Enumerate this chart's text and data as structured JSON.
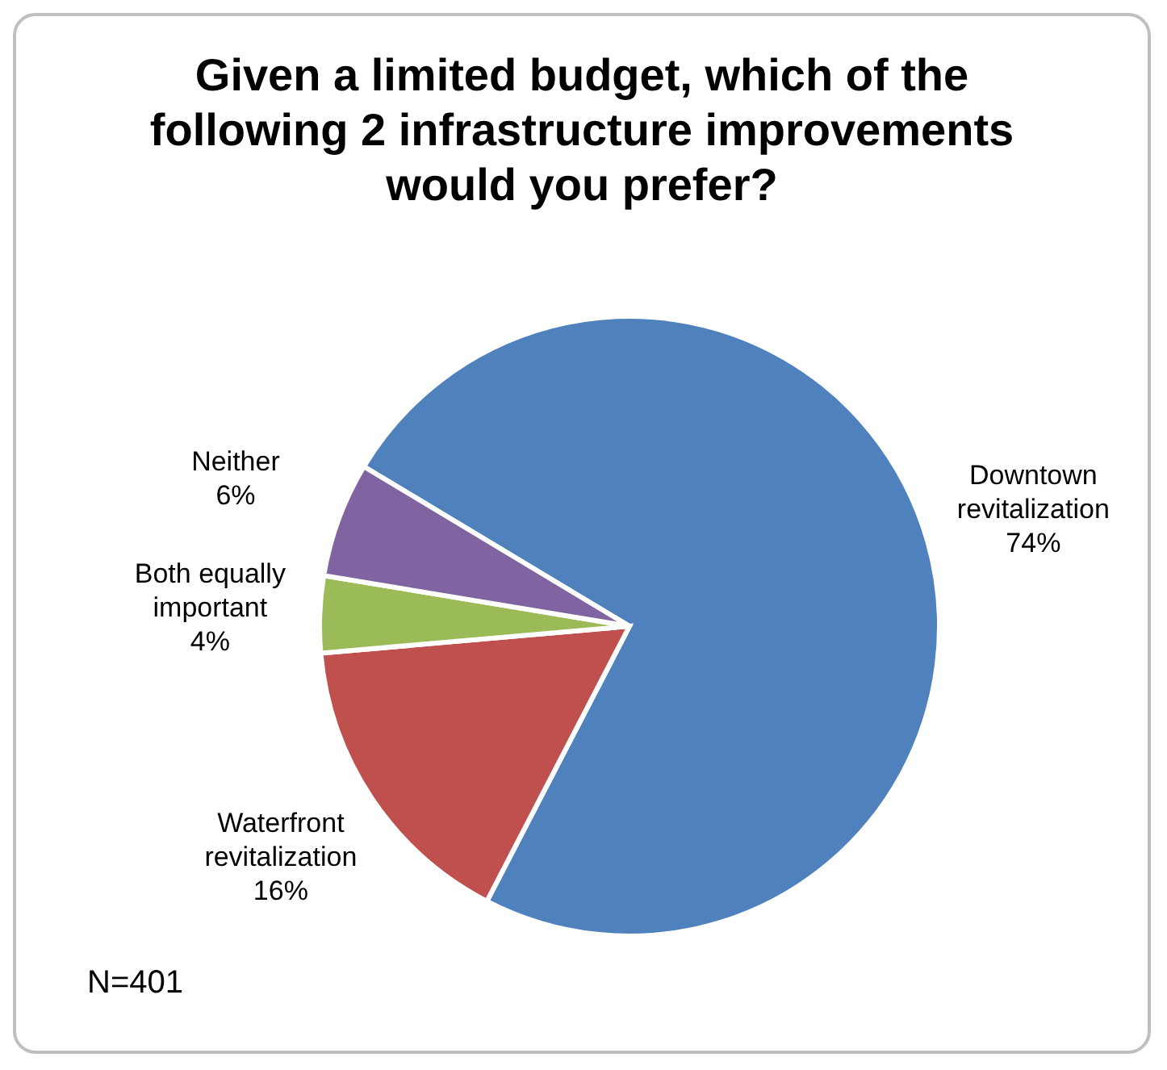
{
  "chart_data": {
    "type": "pie",
    "title": "Given a limited budget, which of the following 2 infrastructure improvements would you prefer?",
    "categories": [
      "Downtown revitalization",
      "Waterfront revitalization",
      "Both equally important",
      "Neither"
    ],
    "values": [
      74,
      16,
      4,
      6
    ],
    "colors": [
      "#4f81bd",
      "#c0504d",
      "#9bbb59",
      "#8064a2"
    ],
    "value_labels": [
      "74%",
      "16%",
      "4%",
      "6%"
    ],
    "annotations": [
      "N=401"
    ],
    "legend": false
  }
}
